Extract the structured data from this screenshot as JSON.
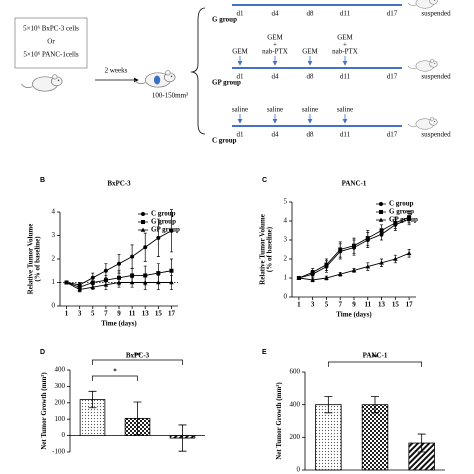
{
  "diagram": {
    "cells": [
      "5×10⁶ BxPC-3 cells",
      "Or",
      "5×10⁶ PANC-1cells"
    ],
    "interval": "2 weeks",
    "volume": "100-150mm³",
    "days": [
      "d1",
      "d4",
      "d8",
      "d11",
      "d17"
    ],
    "endpoint": "suspended",
    "groups": [
      {
        "name": "G group"
      },
      {
        "name": "GP group",
        "treatments": [
          [
            "GEM"
          ],
          [
            "GEM",
            "+",
            "nab-PTX"
          ],
          [
            "GEM"
          ],
          [
            "GEM",
            "+",
            "nab-PTX"
          ]
        ]
      },
      {
        "name": "C group",
        "treatments": [
          [
            "saline"
          ],
          [
            "saline"
          ],
          [
            "saline"
          ],
          [
            "saline"
          ]
        ]
      }
    ]
  },
  "chart_data": [
    {
      "type": "line",
      "panel": "B",
      "title": "BxPC-3",
      "xlabel": "Time (days)",
      "ylabel": [
        "Relative Tumor Volume",
        "(% of baseline)"
      ],
      "x": [
        1,
        3,
        5,
        7,
        9,
        11,
        13,
        15,
        17
      ],
      "xlim": [
        0,
        18
      ],
      "xticks": [
        1,
        3,
        5,
        7,
        9,
        11,
        13,
        15,
        17
      ],
      "ylim": [
        0,
        4
      ],
      "yticks": [
        0,
        1,
        2,
        3,
        4
      ],
      "hline": 1,
      "legend": "upper right",
      "series": [
        {
          "name": "C group",
          "color": "#000000",
          "marker": "circle",
          "values": [
            1,
            0.9,
            1.2,
            1.5,
            1.8,
            2.1,
            2.5,
            2.9,
            3.2
          ],
          "errors": [
            0,
            0.1,
            0.2,
            0.3,
            0.4,
            0.5,
            0.6,
            0.8,
            0.9
          ]
        },
        {
          "name": "G group",
          "color": "#000000",
          "marker": "square",
          "values": [
            1,
            0.8,
            1.0,
            1.1,
            1.2,
            1.3,
            1.3,
            1.4,
            1.5
          ],
          "errors": [
            0,
            0.1,
            0.2,
            0.2,
            0.3,
            0.3,
            0.4,
            0.4,
            0.5
          ]
        },
        {
          "name": "GP group",
          "color": "#000000",
          "marker": "triangle",
          "values": [
            1,
            0.7,
            0.8,
            0.9,
            1.0,
            1.0,
            1.0,
            1.0,
            1.0
          ],
          "errors": [
            0,
            0.1,
            0.1,
            0.2,
            0.2,
            0.2,
            0.3,
            0.3,
            0.3
          ]
        }
      ]
    },
    {
      "type": "line",
      "panel": "C",
      "title": "PANC-1",
      "xlabel": "Time (days)",
      "ylabel": [
        "Relative Tumor Volume",
        "(% of baseline)"
      ],
      "x": [
        1,
        3,
        5,
        7,
        9,
        11,
        13,
        15,
        17
      ],
      "xlim": [
        0,
        18
      ],
      "xticks": [
        1,
        3,
        5,
        7,
        9,
        11,
        13,
        15,
        17
      ],
      "ylim": [
        0,
        5
      ],
      "yticks": [
        0,
        1,
        2,
        3,
        4,
        5
      ],
      "legend": "upper right",
      "series": [
        {
          "name": "C group",
          "color": "#000000",
          "marker": "circle",
          "values": [
            1,
            1.2,
            1.6,
            2.4,
            2.6,
            3.0,
            3.3,
            3.8,
            4.1
          ],
          "errors": [
            0,
            0.2,
            0.3,
            0.4,
            0.4,
            0.4,
            0.3,
            0.3,
            0.3
          ]
        },
        {
          "name": "G group",
          "color": "#000000",
          "marker": "square",
          "values": [
            1,
            1.3,
            1.7,
            2.5,
            2.7,
            3.1,
            3.5,
            3.9,
            4.2
          ],
          "errors": [
            0,
            0.2,
            0.3,
            0.4,
            0.4,
            0.4,
            0.3,
            0.3,
            0.3
          ]
        },
        {
          "name": "GP group",
          "color": "#000000",
          "marker": "triangle",
          "values": [
            1,
            0.9,
            1.0,
            1.2,
            1.4,
            1.6,
            1.8,
            2.0,
            2.3
          ],
          "errors": [
            0,
            0.1,
            0.1,
            0.1,
            0.1,
            0.2,
            0.2,
            0.2,
            0.2
          ]
        }
      ]
    },
    {
      "type": "bar",
      "panel": "D",
      "title": "BxPC-3",
      "ylabel": "Net Tumor Growth (mm³)",
      "values": [
        220,
        105,
        -15
      ],
      "errors": [
        50,
        100,
        80
      ],
      "patterns": [
        "dots",
        "checks",
        "stripes"
      ],
      "ylim": [
        -100,
        400
      ],
      "yticks": [
        -100,
        0,
        100,
        200,
        300,
        400
      ],
      "annotations": [
        {
          "text": "**",
          "between": [
            0,
            2
          ]
        },
        {
          "text": "*",
          "between": [
            0,
            1
          ]
        }
      ]
    },
    {
      "type": "bar",
      "panel": "E",
      "title": "PANC-1",
      "ylabel": "Net Tumor Growth (mm³)",
      "values": [
        400,
        400,
        165
      ],
      "errors": [
        50,
        50,
        55
      ],
      "patterns": [
        "dots",
        "checks",
        "stripes"
      ],
      "ylim": [
        0,
        600
      ],
      "yticks": [
        0,
        200,
        400,
        600
      ],
      "annotations": [
        {
          "text": "**",
          "between": [
            0,
            2
          ]
        }
      ]
    }
  ]
}
